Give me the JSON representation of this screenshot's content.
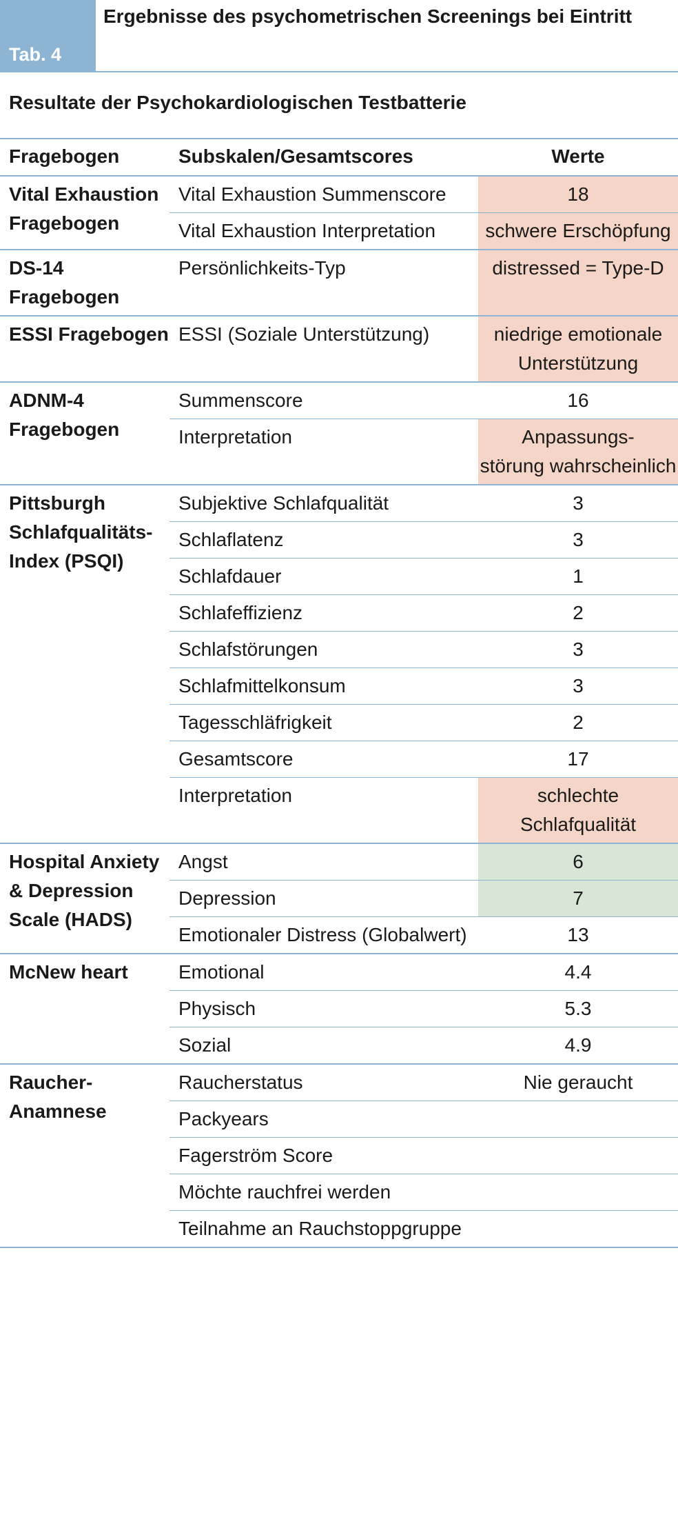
{
  "header": {
    "tab_label": "Tab. 4",
    "table_title": "Ergebnisse des psychometrischen Screenings bei Eintritt"
  },
  "section_title": "Resultate der Psychokardiologischen Testbatterie",
  "columns": {
    "questionnaire": "Fragebogen",
    "subscale": "Subskalen/Gesamtscores",
    "value": "Werte"
  },
  "colors": {
    "accent": "#8db4d3",
    "highlight_red": "#f5d5c7",
    "highlight_green": "#d7e6d5"
  },
  "groups": [
    {
      "name": "Vital Exhaustion Fragebogen",
      "rows": [
        {
          "subscale": "Vital Exhaustion Summenscore",
          "value": "18",
          "highlight": "red"
        },
        {
          "subscale": "Vital Exhaustion Interpretation",
          "value": "schwere Erschöpfung",
          "highlight": "red"
        }
      ]
    },
    {
      "name": "DS-14 Fragebogen",
      "rows": [
        {
          "subscale": "Persönlichkeits-Typ",
          "value": "distressed = Type-D",
          "highlight": "red"
        }
      ]
    },
    {
      "name": "ESSI Fragebogen",
      "rows": [
        {
          "subscale": "ESSI (Soziale Unterstützung)",
          "value": "niedrige emotionale Unterstützung",
          "highlight": "red"
        }
      ]
    },
    {
      "name": "ADNM-4 Fragebogen",
      "rows": [
        {
          "subscale": "Summenscore",
          "value": "16",
          "highlight": "none"
        },
        {
          "subscale": "Interpretation",
          "value": "Anpassungs-\nstörung wahrscheinlich",
          "highlight": "red"
        }
      ]
    },
    {
      "name": "Pittsburgh Schlafqualitäts-Index (PSQI)",
      "rows": [
        {
          "subscale": "Subjektive Schlafqualität",
          "value": "3",
          "highlight": "none"
        },
        {
          "subscale": "Schlaflatenz",
          "value": "3",
          "highlight": "none"
        },
        {
          "subscale": "Schlafdauer",
          "value": "1",
          "highlight": "none"
        },
        {
          "subscale": "Schlafeffizienz",
          "value": "2",
          "highlight": "none"
        },
        {
          "subscale": "Schlafstörungen",
          "value": "3",
          "highlight": "none"
        },
        {
          "subscale": "Schlafmittelkonsum",
          "value": "3",
          "highlight": "none"
        },
        {
          "subscale": "Tagesschläfrigkeit",
          "value": "2",
          "highlight": "none"
        },
        {
          "subscale": "Gesamtscore",
          "value": "17",
          "highlight": "none"
        },
        {
          "subscale": "Interpretation",
          "value": "schlechte Schlafqualität",
          "highlight": "red"
        }
      ]
    },
    {
      "name": "Hospital Anxiety & Depression Scale (HADS)",
      "rows": [
        {
          "subscale": "Angst",
          "value": "6",
          "highlight": "green"
        },
        {
          "subscale": "Depression",
          "value": "7",
          "highlight": "green"
        },
        {
          "subscale": "Emotionaler Distress (Globalwert)",
          "value": "13",
          "highlight": "none"
        }
      ]
    },
    {
      "name": "McNew heart",
      "rows": [
        {
          "subscale": "Emotional",
          "value": "4.4",
          "highlight": "none"
        },
        {
          "subscale": "Physisch",
          "value": "5.3",
          "highlight": "none"
        },
        {
          "subscale": "Sozial",
          "value": "4.9",
          "highlight": "none"
        }
      ]
    },
    {
      "name": "Raucher-\nAnamnese",
      "rows": [
        {
          "subscale": "Raucherstatus",
          "value": "Nie geraucht",
          "highlight": "none"
        },
        {
          "subscale": "Packyears",
          "value": "",
          "highlight": "none"
        },
        {
          "subscale": "Fagerström Score",
          "value": "",
          "highlight": "none"
        },
        {
          "subscale": "Möchte rauchfrei werden",
          "value": "",
          "highlight": "none"
        },
        {
          "subscale": "Teilnahme an Rauchstoppgruppe",
          "value": "",
          "highlight": "none"
        }
      ]
    }
  ]
}
